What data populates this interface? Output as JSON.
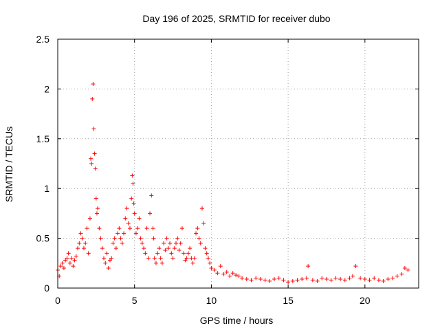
{
  "chart_data": {
    "type": "scatter",
    "title": "Day 196 of 2025, SRMTID for receiver dubo",
    "xlabel": "GPS time / hours",
    "ylabel": "SRMTID / TECUs",
    "xlim": [
      0,
      23.5
    ],
    "ylim": [
      0,
      2.5
    ],
    "xticks": [
      0,
      5,
      10,
      15,
      20
    ],
    "xtick_labels": [
      "0",
      "5",
      "10",
      "15",
      "20"
    ],
    "yticks": [
      0,
      0.5,
      1,
      1.5,
      2,
      2.5
    ],
    "ytick_labels": [
      "0",
      "0.5",
      "1",
      "1.5",
      "2",
      "2.5"
    ],
    "grid": true,
    "marker": "+",
    "series": [
      {
        "name": "dubo",
        "color": "#ff0000",
        "x": [
          0.0,
          0.1,
          0.2,
          0.3,
          0.4,
          0.5,
          0.6,
          0.7,
          0.8,
          0.9,
          1.0,
          1.1,
          1.2,
          1.3,
          1.4,
          1.5,
          1.6,
          1.7,
          1.8,
          1.9,
          2.0,
          2.1,
          2.15,
          2.2,
          2.25,
          2.3,
          2.35,
          2.4,
          2.45,
          2.5,
          2.55,
          2.6,
          2.7,
          2.8,
          2.9,
          3.0,
          3.1,
          3.2,
          3.3,
          3.4,
          3.5,
          3.6,
          3.7,
          3.8,
          3.9,
          4.0,
          4.1,
          4.2,
          4.3,
          4.4,
          4.5,
          4.6,
          4.7,
          4.8,
          4.85,
          4.9,
          4.95,
          5.0,
          5.1,
          5.2,
          5.3,
          5.4,
          5.5,
          5.6,
          5.7,
          5.8,
          5.9,
          6.0,
          6.1,
          6.2,
          6.25,
          6.3,
          6.4,
          6.5,
          6.6,
          6.7,
          6.8,
          6.9,
          7.0,
          7.1,
          7.2,
          7.3,
          7.4,
          7.5,
          7.6,
          7.7,
          7.8,
          7.9,
          8.0,
          8.1,
          8.2,
          8.3,
          8.4,
          8.5,
          8.6,
          8.7,
          8.8,
          8.9,
          9.0,
          9.1,
          9.2,
          9.3,
          9.4,
          9.5,
          9.6,
          9.7,
          9.8,
          9.9,
          10.0,
          10.2,
          10.4,
          10.6,
          10.8,
          11.0,
          11.2,
          11.4,
          11.6,
          11.8,
          12.0,
          12.3,
          12.6,
          12.9,
          13.2,
          13.5,
          13.8,
          14.1,
          14.4,
          14.7,
          15.0,
          15.3,
          15.6,
          15.9,
          16.2,
          16.3,
          16.6,
          16.9,
          17.2,
          17.5,
          17.8,
          18.1,
          18.4,
          18.7,
          19.0,
          19.2,
          19.4,
          19.7,
          20.0,
          20.3,
          20.6,
          20.9,
          21.2,
          21.5,
          21.8,
          22.1,
          22.4,
          22.6,
          22.8
        ],
        "y": [
          0.18,
          0.12,
          0.22,
          0.25,
          0.2,
          0.28,
          0.3,
          0.35,
          0.25,
          0.3,
          0.22,
          0.28,
          0.32,
          0.4,
          0.45,
          0.55,
          0.5,
          0.4,
          0.45,
          0.6,
          0.35,
          0.7,
          1.3,
          1.25,
          1.9,
          2.05,
          1.6,
          1.35,
          1.2,
          0.9,
          0.75,
          0.8,
          0.6,
          0.5,
          0.4,
          0.3,
          0.25,
          0.35,
          0.2,
          0.28,
          0.3,
          0.45,
          0.5,
          0.4,
          0.55,
          0.6,
          0.5,
          0.45,
          0.55,
          0.7,
          0.8,
          0.65,
          0.6,
          0.9,
          1.13,
          1.05,
          0.85,
          0.75,
          0.55,
          0.6,
          0.7,
          0.5,
          0.45,
          0.4,
          0.35,
          0.6,
          0.3,
          0.75,
          0.93,
          0.6,
          0.5,
          0.3,
          0.25,
          0.35,
          0.4,
          0.3,
          0.25,
          0.45,
          0.38,
          0.5,
          0.4,
          0.45,
          0.35,
          0.3,
          0.4,
          0.45,
          0.5,
          0.38,
          0.45,
          0.6,
          0.35,
          0.28,
          0.3,
          0.35,
          0.4,
          0.3,
          0.25,
          0.3,
          0.55,
          0.6,
          0.5,
          0.45,
          0.8,
          0.65,
          0.4,
          0.35,
          0.3,
          0.25,
          0.2,
          0.18,
          0.15,
          0.22,
          0.14,
          0.16,
          0.12,
          0.15,
          0.13,
          0.12,
          0.1,
          0.09,
          0.08,
          0.1,
          0.09,
          0.08,
          0.07,
          0.09,
          0.1,
          0.08,
          0.06,
          0.07,
          0.08,
          0.09,
          0.1,
          0.22,
          0.08,
          0.07,
          0.1,
          0.09,
          0.08,
          0.1,
          0.09,
          0.08,
          0.1,
          0.12,
          0.22,
          0.1,
          0.09,
          0.08,
          0.1,
          0.08,
          0.07,
          0.09,
          0.1,
          0.12,
          0.14,
          0.2,
          0.18
        ]
      }
    ]
  }
}
